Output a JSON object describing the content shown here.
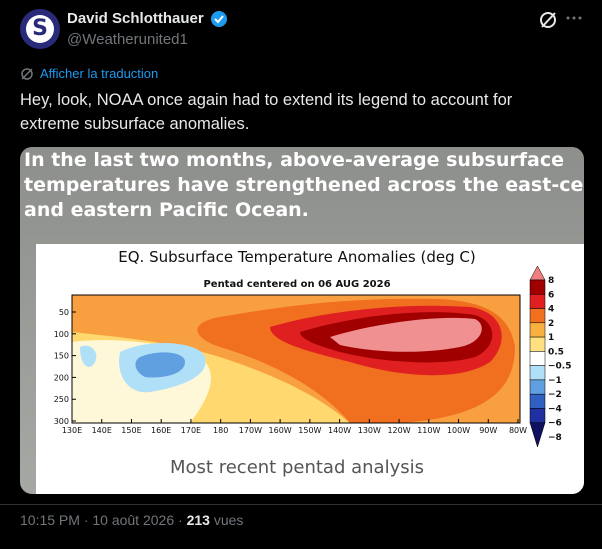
{
  "tweet": {
    "avatar_letter": "S",
    "author": "David Schlotthauer",
    "handle": "@Weatherunited1",
    "translate": "Afficher la traduction",
    "text_lines": [
      "Hey, look, NOAA once again had to extend its legend to account for",
      "extreme subsurface anomalies."
    ],
    "image": {
      "overlay_lines": [
        "In the last two months, above-average subsurface",
        "temperatures have strengthened across the east-centra",
        "and eastern Pacific Ocean."
      ],
      "chart": {
        "title": "EQ. Subsurface Temperature Anomalies (deg C)",
        "subtitle": "Pentad centered on 06 AUG 2026",
        "yticks": [
          "50",
          "100",
          "150",
          "200",
          "250",
          "300"
        ],
        "xticks": [
          "130E",
          "140E",
          "150E",
          "160E",
          "170E",
          "180",
          "170W",
          "160W",
          "150W",
          "140W",
          "130W",
          "120W",
          "110W",
          "100W",
          "90W",
          "80W"
        ],
        "colorbar": [
          "8",
          "6",
          "4",
          "2",
          "1",
          "0.5",
          "−0.5",
          "−1",
          "−2",
          "−4",
          "−6",
          "−8"
        ],
        "caption": "Most recent pentad analysis"
      }
    },
    "footer": {
      "timestamp": "10:15 PM · 10 août 2026 · ",
      "views": "213",
      "views_label": "vues"
    }
  }
}
